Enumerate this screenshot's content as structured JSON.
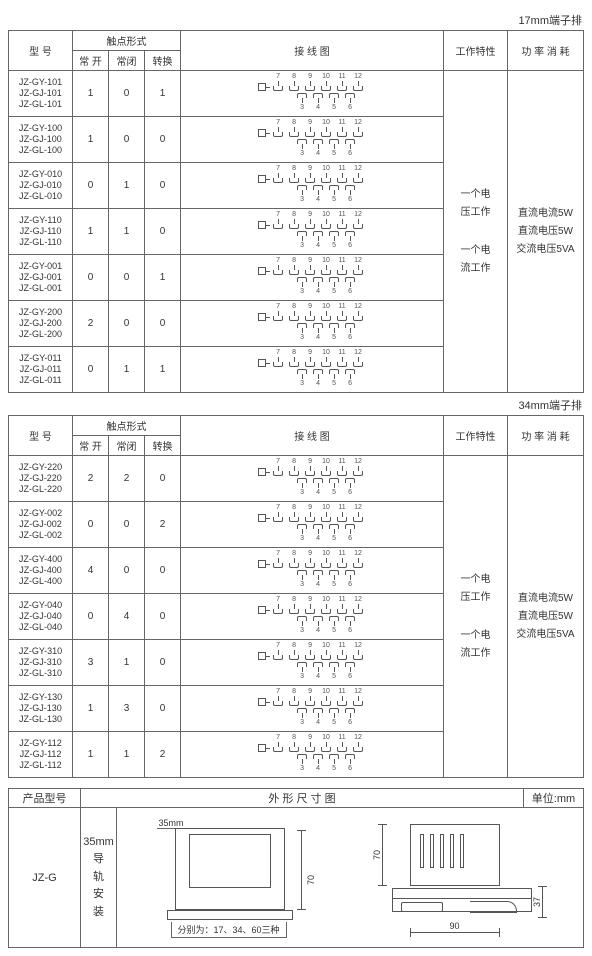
{
  "captions": {
    "t17": "17mm端子排",
    "t34": "34mm端子排"
  },
  "headers": {
    "model": "型 号",
    "contact_form": "触点形式",
    "c_open": "常 开",
    "c_close": "常闭",
    "c_switch": "转换",
    "wiring": "接 线 图",
    "work_char": "工作特性",
    "power": "功 率 消 耗"
  },
  "work_char_text": {
    "volt": "一个电\n压工作",
    "curr": "一个电\n流工作"
  },
  "power_text": {
    "l1": "直流电流5W",
    "l2": "直流电压5W",
    "l3": "交流电压5VA"
  },
  "table17": [
    {
      "models": [
        "JZ-GY-101",
        "JZ-GJ-101",
        "JZ-GL-101"
      ],
      "o": "1",
      "c": "0",
      "s": "1",
      "top": [
        "7",
        "8",
        "9",
        "10",
        "11",
        "12"
      ],
      "bot": [
        "3",
        "4",
        "5",
        "6"
      ]
    },
    {
      "models": [
        "JZ-GY-100",
        "JZ-GJ-100",
        "JZ-GL-100"
      ],
      "o": "1",
      "c": "0",
      "s": "0",
      "top": [
        "7",
        "8",
        "9",
        "10",
        "11",
        "12"
      ],
      "bot": [
        "3",
        "4",
        "5",
        "6"
      ]
    },
    {
      "models": [
        "JZ-GY-010",
        "JZ-GJ-010",
        "JZ-GL-010"
      ],
      "o": "0",
      "c": "1",
      "s": "0",
      "top": [
        "7",
        "8",
        "9",
        "10",
        "11",
        "12"
      ],
      "bot": [
        "3",
        "4",
        "5",
        "6"
      ]
    },
    {
      "models": [
        "JZ-GY-110",
        "JZ-GJ-110",
        "JZ-GL-110"
      ],
      "o": "1",
      "c": "1",
      "s": "0",
      "top": [
        "7",
        "8",
        "9",
        "10",
        "11",
        "12"
      ],
      "bot": [
        "3",
        "4",
        "5",
        "6"
      ]
    },
    {
      "models": [
        "JZ-GY-001",
        "JZ-GJ-001",
        "JZ-GL-001"
      ],
      "o": "0",
      "c": "0",
      "s": "1",
      "top": [
        "7",
        "8",
        "9",
        "10",
        "11",
        "12"
      ],
      "bot": [
        "3",
        "4",
        "5",
        "6"
      ]
    },
    {
      "models": [
        "JZ-GY-200",
        "JZ-GJ-200",
        "JZ-GL-200"
      ],
      "o": "2",
      "c": "0",
      "s": "0",
      "top": [
        "7",
        "8",
        "9",
        "10",
        "11",
        "12"
      ],
      "bot": [
        "3",
        "4",
        "5",
        "6"
      ]
    },
    {
      "models": [
        "JZ-GY-011",
        "JZ-GJ-011",
        "JZ-GL-011"
      ],
      "o": "0",
      "c": "1",
      "s": "1",
      "top": [
        "7",
        "8",
        "9",
        "10",
        "11",
        "12"
      ],
      "bot": [
        "3",
        "4",
        "5",
        "6"
      ]
    }
  ],
  "table34": [
    {
      "models": [
        "JZ-GY-220",
        "JZ-GJ-220",
        "JZ-GL-220"
      ],
      "o": "2",
      "c": "2",
      "s": "0",
      "top": [
        "7",
        "8",
        "9",
        "10",
        "11",
        "12"
      ],
      "bot": [
        "3",
        "4",
        "5",
        "6"
      ]
    },
    {
      "models": [
        "JZ-GY-002",
        "JZ-GJ-002",
        "JZ-GL-002"
      ],
      "o": "0",
      "c": "0",
      "s": "2",
      "top": [
        "7",
        "8",
        "9",
        "10",
        "11",
        "12"
      ],
      "bot": [
        "3",
        "4",
        "5",
        "6"
      ]
    },
    {
      "models": [
        "JZ-GY-400",
        "JZ-GJ-400",
        "JZ-GL-400"
      ],
      "o": "4",
      "c": "0",
      "s": "0",
      "top": [
        "7",
        "8",
        "9",
        "10",
        "11",
        "12"
      ],
      "bot": [
        "3",
        "4",
        "5",
        "6"
      ]
    },
    {
      "models": [
        "JZ-GY-040",
        "JZ-GJ-040",
        "JZ-GL-040"
      ],
      "o": "0",
      "c": "4",
      "s": "0",
      "top": [
        "7",
        "8",
        "9",
        "10",
        "11",
        "12"
      ],
      "bot": [
        "3",
        "4",
        "5",
        "6"
      ]
    },
    {
      "models": [
        "JZ-GY-310",
        "JZ-GJ-310",
        "JZ-GL-310"
      ],
      "o": "3",
      "c": "1",
      "s": "0",
      "top": [
        "7",
        "8",
        "9",
        "10",
        "11",
        "12"
      ],
      "bot": [
        "3",
        "4",
        "5",
        "6"
      ]
    },
    {
      "models": [
        "JZ-GY-130",
        "JZ-GJ-130",
        "JZ-GL-130"
      ],
      "o": "1",
      "c": "3",
      "s": "0",
      "top": [
        "7",
        "8",
        "9",
        "10",
        "11",
        "12"
      ],
      "bot": [
        "3",
        "4",
        "5",
        "6"
      ]
    },
    {
      "models": [
        "JZ-GY-112",
        "JZ-GJ-112",
        "JZ-GL-112"
      ],
      "o": "1",
      "c": "1",
      "s": "2",
      "top": [
        "7",
        "8",
        "9",
        "10",
        "11",
        "12"
      ],
      "bot": [
        "3",
        "4",
        "5",
        "6"
      ]
    }
  ],
  "outline": {
    "h_model": "产品型号",
    "h_dim": "外 形 尺 寸 图",
    "h_unit": "单位:mm",
    "model": "JZ-G",
    "mount_pre": "35mm",
    "mount": "导\n轨\n安\n装",
    "dim70": "70",
    "dim37": "37",
    "dim90": "90",
    "note": "分别为：17、34、60三种"
  }
}
